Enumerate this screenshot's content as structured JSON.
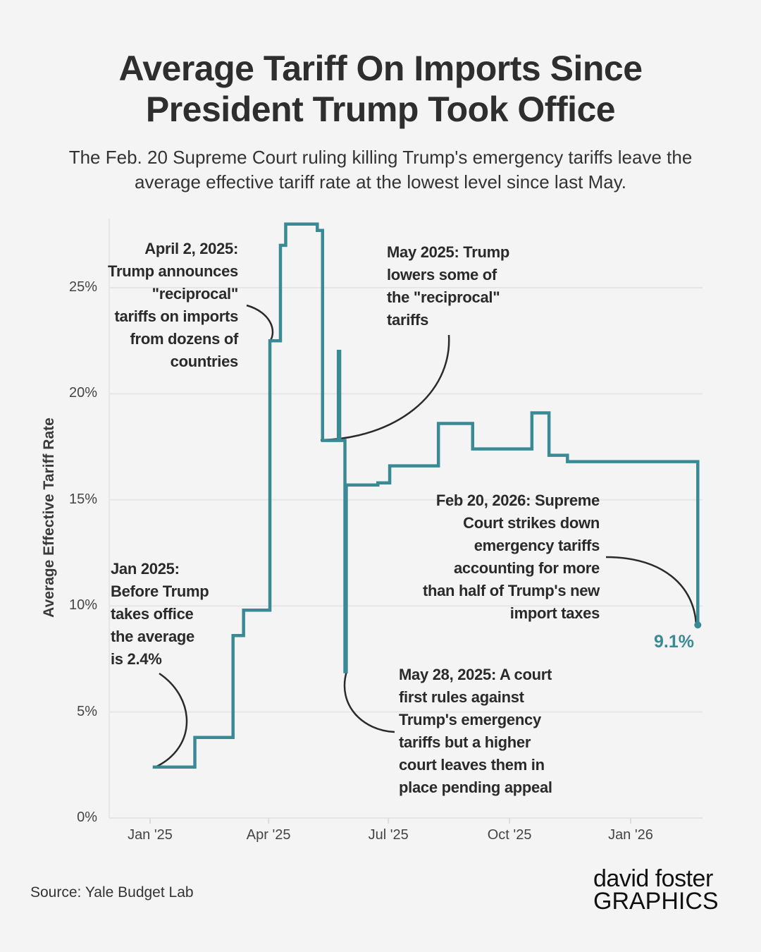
{
  "title_line1": "Average Tariff On Imports Since",
  "title_line2": "President Trump Took Office",
  "subtitle_line1": "The Feb. 20 Supreme Court ruling killing Trump's emergency tariffs leave the",
  "subtitle_line2": "average effective tariff rate at the lowest level since last May.",
  "source": "Source: Yale Budget Lab",
  "logo": {
    "line1": "david foster",
    "line2": "GRAPHICS"
  },
  "colors": {
    "line": "#3a8a96",
    "grid": "#e6e6e6",
    "text": "#2b2b2b",
    "logo_accent": "#3a9ee4"
  },
  "chart_data": {
    "type": "line",
    "step": true,
    "title": "Average Tariff On Imports Since President Trump Took Office",
    "xlabel": "",
    "ylabel": "Average Effective Tariff Rate",
    "ylim": [
      0,
      28.5
    ],
    "yticks": [
      0,
      5,
      10,
      15,
      20,
      25
    ],
    "ytick_labels": [
      "0%",
      "5%",
      "10%",
      "15%",
      "20%",
      "25%"
    ],
    "xticks": [
      "2025-01-01",
      "2025-04-01",
      "2025-07-01",
      "2025-10-01",
      "2026-01-01"
    ],
    "xtick_labels": [
      "Jan '25",
      "Apr '25",
      "Jul '25",
      "Oct '25",
      "Jan '26"
    ],
    "grid": true,
    "series": [
      {
        "name": "Average effective tariff rate (%)",
        "points": [
          [
            "2025-01-03",
            2.4
          ],
          [
            "2025-02-04",
            3.8
          ],
          [
            "2025-03-05",
            8.6
          ],
          [
            "2025-03-13",
            9.8
          ],
          [
            "2025-04-02",
            22.5
          ],
          [
            "2025-04-10",
            27.0
          ],
          [
            "2025-04-14",
            28.0
          ],
          [
            "2025-05-08",
            27.7
          ],
          [
            "2025-05-12",
            17.8
          ],
          [
            "2025-05-24",
            22.0
          ],
          [
            "2025-05-25",
            17.8
          ],
          [
            "2025-05-29",
            6.9
          ],
          [
            "2025-05-30",
            15.7
          ],
          [
            "2025-06-23",
            15.8
          ],
          [
            "2025-07-02",
            16.6
          ],
          [
            "2025-08-08",
            18.6
          ],
          [
            "2025-09-03",
            17.4
          ],
          [
            "2025-10-18",
            19.1
          ],
          [
            "2025-10-31",
            17.1
          ],
          [
            "2025-11-14",
            16.8
          ],
          [
            "2026-02-21",
            9.1
          ]
        ]
      }
    ],
    "end_label": "9.1%",
    "annotations": [
      {
        "text": "April 2, 2025:\nTrump announces\n\"reciprocal\"\ntariffs on imports\nfrom dozens of\ncountries"
      },
      {
        "text": "May 2025: Trump\nlowers some of\nthe \"reciprocal\"\ntariffs"
      },
      {
        "text": "Feb 20, 2026: Supreme\nCourt strikes down\nemergency tariffs\naccounting for more\nthan half of Trump's new\nimport taxes"
      },
      {
        "text": "Jan 2025:\nBefore Trump\ntakes office\nthe average\nis 2.4%"
      },
      {
        "text": "May 28, 2025: A court\nfirst rules against\nTrump's emergency\ntariffs but a higher\ncourt leaves them in\nplace pending appeal"
      }
    ]
  }
}
